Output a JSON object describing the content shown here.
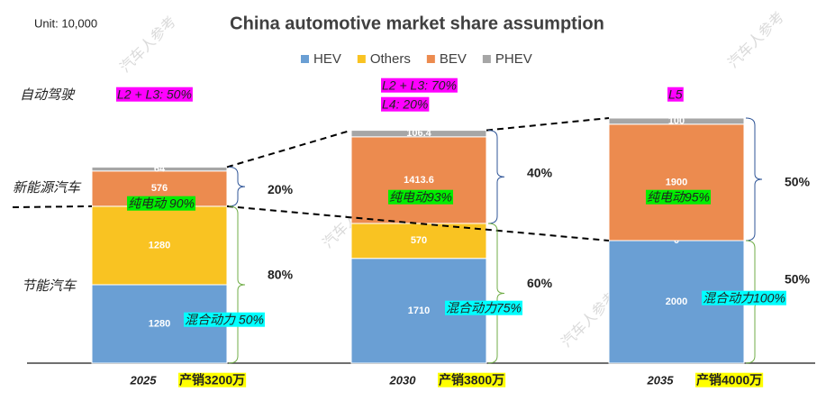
{
  "chart_data": {
    "type": "bar",
    "stacked": true,
    "title": "China automotive market share assumption",
    "unit_note": "Unit: 10,000",
    "categories": [
      "2025",
      "2030",
      "2035"
    ],
    "sales_labels": [
      "产销3200万",
      "产销3800万",
      "产销4000万"
    ],
    "series": [
      {
        "name": "HEV",
        "color": "#6a9fd4",
        "values": [
          1280,
          1710,
          2000
        ]
      },
      {
        "name": "Others",
        "color": "#f9c322",
        "values": [
          1280,
          570,
          0
        ]
      },
      {
        "name": "BEV",
        "color": "#ec8b4f",
        "values": [
          576,
          1413.6,
          1900
        ]
      },
      {
        "name": "PHEV",
        "color": "#a6a6a6",
        "values": [
          64,
          106.4,
          100
        ]
      }
    ],
    "ylim": [
      0,
      4000
    ],
    "legend": "top",
    "row_labels": [
      "自动驾驶",
      "新能源汽车",
      "节能汽车"
    ],
    "autonomy_labels": [
      [
        "L2 + L3: 50%"
      ],
      [
        "L2 + L3: 70%",
        "L4: 20%"
      ],
      [
        "L5"
      ]
    ],
    "bev_share_labels": [
      "纯电动 90%",
      "纯电动93%",
      "纯电动95%"
    ],
    "hybrid_share_labels": [
      "混合动力 50%",
      "混合动力75%",
      "混合动力100%"
    ],
    "nev_share_labels": [
      "20%",
      "40%",
      "50%"
    ],
    "ice_share_labels": [
      "80%",
      "60%",
      "50%"
    ],
    "watermark": "汽车人参考"
  }
}
